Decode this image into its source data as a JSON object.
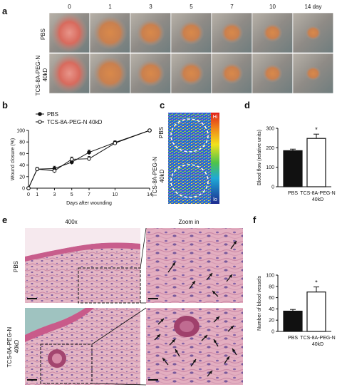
{
  "panel_a": {
    "label": "a",
    "day_labels": [
      "0",
      "1",
      "3",
      "5",
      "7",
      "10",
      "14 day"
    ],
    "rows": [
      "PBS",
      "TCS-8A-PEG-N 40kD"
    ]
  },
  "panel_b": {
    "label": "b",
    "legend": [
      "PBS",
      "TCS-8A-PEG-N 40kD"
    ],
    "ylabel": "Wound closure (%)",
    "xlabel": "Days after wounding"
  },
  "panel_c": {
    "label": "c",
    "rows": [
      "PBS",
      "TCS-8A-PEG-N 40kD"
    ],
    "scale_hi": "Hi",
    "scale_lo": "lo"
  },
  "panel_d": {
    "label": "d",
    "ylabel": "Blood flow (relative units)",
    "star": "*"
  },
  "panel_e": {
    "label": "e",
    "col_titles": [
      "400x",
      "Zoom in"
    ],
    "rows": [
      "PBS",
      "TCS-8A-PEG-N 40kD"
    ]
  },
  "panel_f": {
    "label": "f",
    "ylabel": "Number of blood vessels",
    "star": "*"
  },
  "chart_data": [
    {
      "panel": "b",
      "type": "line",
      "xlabel": "Days after wounding",
      "ylabel": "Wound closure (%)",
      "x": [
        0,
        1,
        3,
        5,
        7,
        10,
        14
      ],
      "xticks": [
        0,
        1,
        3,
        5,
        7,
        10,
        14
      ],
      "ylim": [
        0,
        100
      ],
      "yticks": [
        0,
        20,
        40,
        60,
        80,
        100
      ],
      "legend_position": "top-left",
      "series": [
        {
          "name": "PBS",
          "marker": "filled",
          "values": [
            0,
            33,
            34,
            45,
            62,
            79,
            100
          ],
          "errors": [
            0,
            3,
            4,
            4,
            4,
            3,
            0
          ]
        },
        {
          "name": "TCS-8A-PEG-N 40kD",
          "marker": "open",
          "values": [
            0,
            33,
            30,
            50,
            51,
            78,
            100
          ],
          "errors": [
            0,
            3,
            4,
            4,
            4,
            3,
            0
          ]
        }
      ]
    },
    {
      "panel": "d",
      "type": "bar",
      "categories": [
        "PBS",
        "TCS-8A-PEG-N 40kD"
      ],
      "values": [
        185,
        248
      ],
      "errors": [
        8,
        22
      ],
      "ylabel": "Blood flow (relative units)",
      "ylim": [
        0,
        300
      ],
      "yticks": [
        0,
        100,
        200,
        300
      ],
      "significance": "*"
    },
    {
      "panel": "f",
      "type": "bar",
      "categories": [
        "PBS",
        "TCS-8A-PEG-N 40kD"
      ],
      "values": [
        36,
        70
      ],
      "errors": [
        3,
        9
      ],
      "ylabel": "Number of blood vessels",
      "ylim": [
        0,
        100
      ],
      "yticks": [
        0,
        20,
        40,
        60,
        80,
        100
      ],
      "significance": "*"
    }
  ]
}
